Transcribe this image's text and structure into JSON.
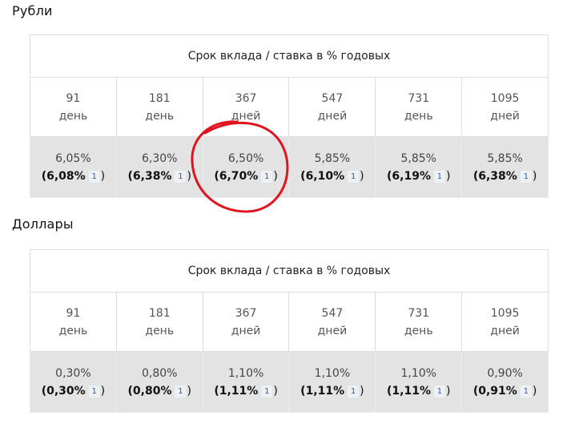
{
  "rub": {
    "title": "Рубли",
    "header": "Срок вклада / ставка в % годовых",
    "terms": [
      {
        "num": "91",
        "unit": "день"
      },
      {
        "num": "181",
        "unit": "день"
      },
      {
        "num": "367",
        "unit": "дней"
      },
      {
        "num": "547",
        "unit": "дней"
      },
      {
        "num": "731",
        "unit": "день"
      },
      {
        "num": "1095",
        "unit": "дней"
      }
    ],
    "rates": [
      {
        "rate": "6,05%",
        "eff": "(6,08%",
        "fn": "1",
        "close": ")"
      },
      {
        "rate": "6,30%",
        "eff": "(6,38%",
        "fn": "1",
        "close": ")"
      },
      {
        "rate": "6,50%",
        "eff": "(6,70%",
        "fn": "1",
        "close": ")"
      },
      {
        "rate": "5,85%",
        "eff": "(6,10%",
        "fn": "1",
        "close": ")"
      },
      {
        "rate": "5,85%",
        "eff": "(6,19%",
        "fn": "1",
        "close": ")"
      },
      {
        "rate": "5,85%",
        "eff": "(6,38%",
        "fn": "1",
        "close": ")"
      }
    ]
  },
  "usd": {
    "title": "Доллары",
    "header": "Срок вклада / ставка в % годовых",
    "terms": [
      {
        "num": "91",
        "unit": "день"
      },
      {
        "num": "181",
        "unit": "день"
      },
      {
        "num": "367",
        "unit": "дней"
      },
      {
        "num": "547",
        "unit": "дней"
      },
      {
        "num": "731",
        "unit": "день"
      },
      {
        "num": "1095",
        "unit": "дней"
      }
    ],
    "rates": [
      {
        "rate": "0,30%",
        "eff": "(0,30%",
        "fn": "1",
        "close": ")"
      },
      {
        "rate": "0,80%",
        "eff": "(0,80%",
        "fn": "1",
        "close": ")"
      },
      {
        "rate": "1,10%",
        "eff": "(1,11%",
        "fn": "1",
        "close": ")"
      },
      {
        "rate": "1,10%",
        "eff": "(1,11%",
        "fn": "1",
        "close": ")"
      },
      {
        "rate": "1,10%",
        "eff": "(1,11%",
        "fn": "1",
        "close": ")"
      },
      {
        "rate": "0,90%",
        "eff": "(0,91%",
        "fn": "1",
        "close": ")"
      }
    ]
  },
  "annotation": {
    "color": "#e0141e",
    "marks": "circle around 367-day rouble rate"
  }
}
